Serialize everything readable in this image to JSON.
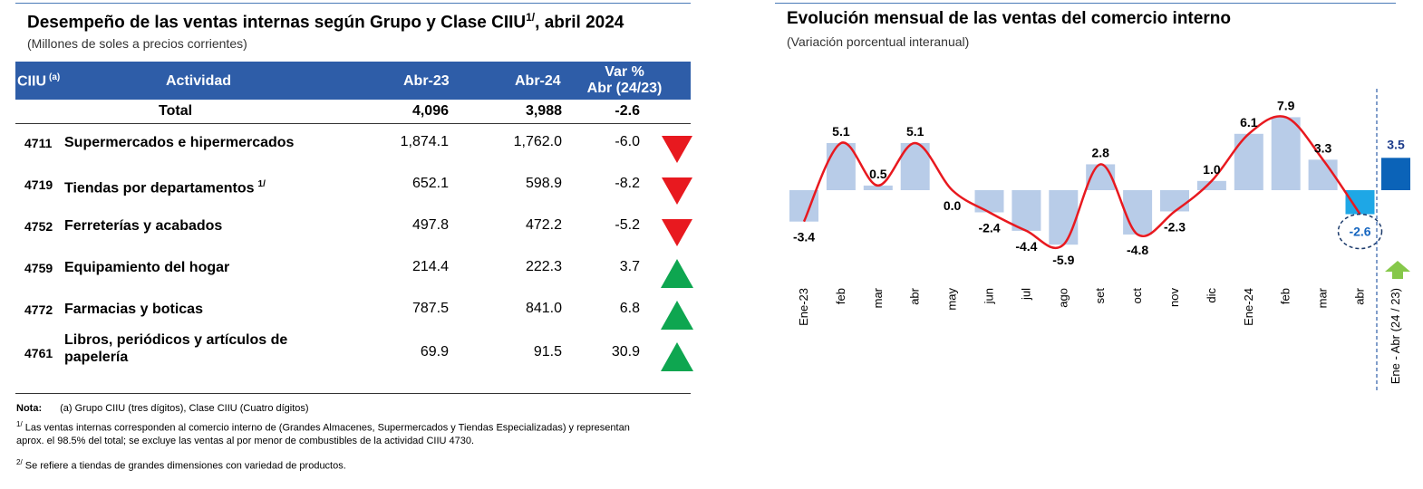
{
  "table_panel": {
    "title": "Desempeño de las ventas internas según Grupo y Clase CIIU",
    "title_sup": "1/",
    "title_tail": ", abril 2024",
    "subtitle": "(Millones de soles a precios corrientes)",
    "headers": {
      "ciiu": "CIIU",
      "ciiu_sup": "(a)",
      "actividad": "Actividad",
      "abr23": "Abr-23",
      "abr24": "Abr-24",
      "var_line1": "Var %",
      "var_line2": "Abr (24/23)"
    },
    "total": {
      "label": "Total",
      "abr23": "4,096",
      "abr24": "3,988",
      "var": "-2.6"
    },
    "rows": [
      {
        "code": "4711",
        "activity": "Supermercados  e hipermercados",
        "sup": "",
        "abr23": "1,874.1",
        "abr24": "1,762.0",
        "var": "-6.0",
        "trend": "down"
      },
      {
        "code": "4719",
        "activity": "Tiendas por departamentos",
        "sup": "1/",
        "abr23": "652.1",
        "abr24": "598.9",
        "var": "-8.2",
        "trend": "down"
      },
      {
        "code": "4752",
        "activity": "Ferreterías y acabados",
        "sup": "",
        "abr23": "497.8",
        "abr24": "472.2",
        "var": "-5.2",
        "trend": "down"
      },
      {
        "code": "4759",
        "activity": "Equipamiento del hogar",
        "sup": "",
        "abr23": "214.4",
        "abr24": "222.3",
        "var": "3.7",
        "trend": "up"
      },
      {
        "code": "4772",
        "activity": "Farmacias y boticas",
        "sup": "",
        "abr23": "787.5",
        "abr24": "841.0",
        "var": "6.8",
        "trend": "up"
      },
      {
        "code": "4761",
        "activity": "Libros, periódicos y artículos de",
        "activity_line2": "papelería",
        "sup": "",
        "abr23": "69.9",
        "abr24": "91.5",
        "var": "30.9",
        "trend": "up"
      }
    ],
    "notes": {
      "label": "Nota:",
      "n1": "(a) Grupo CIIU (tres dígitos), Clase CIIU (Cuatro dígitos)",
      "n2_sup": "1/",
      "n2_line1": " Las ventas internas corresponden al comercio interno de (Grandes Almacenes, Supermercados y Tiendas Especializadas) y representan",
      "n2_line2": "aprox. el 98.5% del total; se excluye las ventas al por menor de combustibles de la actividad CIIU 4730.",
      "n3_sup": "2/",
      "n3": " Se refiere a tiendas de grandes dimensiones con variedad de productos."
    },
    "colors": {
      "header_bg": "#2e5da8",
      "down": "#e8191f",
      "up": "#0ea650"
    }
  },
  "chart_data": {
    "type": "bar",
    "title": "Evolución mensual de las ventas del comercio interno",
    "subtitle": "(Variación porcentual interanual)",
    "categories": [
      "Ene-23",
      "feb",
      "mar",
      "abr",
      "may",
      "jun",
      "jul",
      "ago",
      "set",
      "oct",
      "nov",
      "dic",
      "Ene-24",
      "feb",
      "mar",
      "abr"
    ],
    "values": [
      -3.4,
      5.1,
      0.5,
      5.1,
      0.0,
      -2.4,
      -4.4,
      -5.9,
      2.8,
      -4.8,
      -2.3,
      1.0,
      6.1,
      7.9,
      3.3,
      -2.6
    ],
    "labels": [
      "-3.4",
      "5.1",
      "0.5",
      "5.1",
      "0.0",
      "-2.4",
      "-4.4",
      "-5.9",
      "2.8",
      "-4.8",
      "-2.3",
      "1.0",
      "6.1",
      "7.9",
      "3.3",
      "-2.6"
    ],
    "overlay_line": "smoothed trend of the same values",
    "cumulative": {
      "category": "Ene - Abr (24 / 23)",
      "value": 3.5,
      "label": "3.5",
      "trend": "up"
    },
    "highlighted": "abr",
    "colors": {
      "bar": "#b8cce8",
      "highlight_bar": "#1ea7e6",
      "cumulative_bar": "#0b63b8",
      "line": "#e8191f",
      "highlight_label": "#1666c0",
      "cumulative_arrow": "#86c84a",
      "title_rule": "#4a7ab8"
    }
  }
}
